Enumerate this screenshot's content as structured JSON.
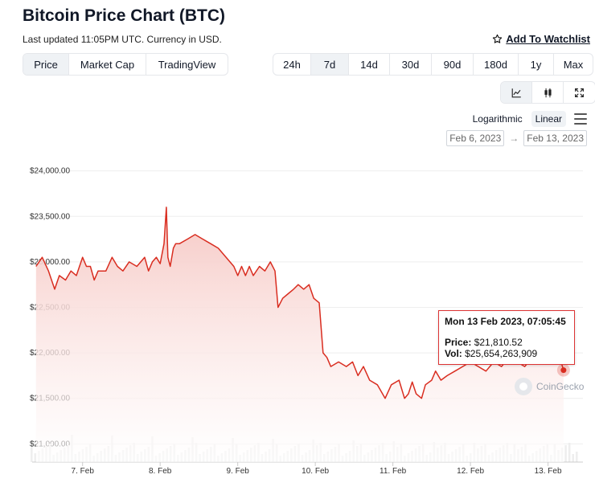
{
  "header": {
    "title": "Bitcoin Price Chart (BTC)",
    "subtitle": "Last updated 11:05PM UTC. Currency in USD.",
    "watchlist_label": "Add To Watchlist"
  },
  "view_tabs": [
    "Price",
    "Market Cap",
    "TradingView"
  ],
  "view_active": "Price",
  "range_tabs": [
    "24h",
    "7d",
    "14d",
    "30d",
    "90d",
    "180d",
    "1y",
    "Max"
  ],
  "range_active": "7d",
  "chart_type_icons": [
    "line-chart-icon",
    "candlestick-icon",
    "expand-icon"
  ],
  "scale": {
    "options": [
      "Logarithmic",
      "Linear"
    ],
    "active": "Linear"
  },
  "date_range": {
    "from": "Feb 6, 2023",
    "to": "Feb 13, 2023"
  },
  "tooltip": {
    "title": "Mon 13 Feb 2023, 07:05:45",
    "price_label": "Price:",
    "price_value": "$21,810.52",
    "vol_label": "Vol:",
    "vol_value": "$25,654,263,909"
  },
  "watermark": "CoinGecko",
  "colors": {
    "line": "#d92d20",
    "area_top": "#f6c8c4",
    "area_bottom": "#ffffff",
    "grid": "#eeeeee",
    "volume": "#eeeeee"
  },
  "chart_data": {
    "type": "area",
    "title": "Bitcoin Price Chart (BTC)",
    "ylim": [
      20800,
      24200
    ],
    "yticks": [
      21000,
      21500,
      22000,
      22500,
      23000,
      23500,
      24000
    ],
    "ytick_labels": [
      "$21,000.00",
      "$21,500.00",
      "$22,000.00",
      "$22,500.00",
      "$23,000.00",
      "$23,500.00",
      "$24,000.00"
    ],
    "xlim": [
      6.35,
      13.45
    ],
    "xticks": [
      7,
      8,
      9,
      10,
      11,
      12,
      13
    ],
    "xtick_labels": [
      "7. Feb",
      "8. Feb",
      "9. Feb",
      "10. Feb",
      "11. Feb",
      "12. Feb",
      "13. Feb"
    ],
    "grid": true,
    "series": [
      {
        "x": [
          6.4,
          6.48,
          6.56,
          6.64,
          6.7,
          6.78,
          6.85,
          6.92,
          7.0,
          7.05,
          7.1,
          7.15,
          7.2,
          7.3,
          7.38,
          7.45,
          7.52,
          7.6,
          7.7,
          7.8,
          7.85,
          7.9,
          7.95,
          8.0,
          8.05,
          8.08,
          8.1,
          8.13,
          8.17,
          8.2,
          8.25,
          8.35,
          8.45,
          8.55,
          8.65,
          8.75,
          8.85,
          8.95,
          9.0,
          9.05,
          9.1,
          9.15,
          9.2,
          9.28,
          9.35,
          9.42,
          9.48,
          9.52,
          9.58,
          9.65,
          9.72,
          9.78,
          9.85,
          9.92,
          9.98,
          10.05,
          10.1,
          10.15,
          10.2,
          10.3,
          10.4,
          10.48,
          10.55,
          10.62,
          10.7,
          10.8,
          10.9,
          10.98,
          11.08,
          11.15,
          11.2,
          11.25,
          11.3,
          11.37,
          11.42,
          11.5,
          11.55,
          11.62,
          11.7,
          11.8,
          11.9,
          12.0,
          12.1,
          12.2,
          12.3,
          12.4,
          12.5,
          12.6,
          12.7,
          12.8,
          12.9,
          13.0,
          13.05,
          13.1,
          13.15,
          13.2
        ],
        "y": [
          22950,
          23050,
          22900,
          22700,
          22850,
          22800,
          22900,
          22850,
          23050,
          22950,
          22950,
          22800,
          22900,
          22900,
          23050,
          22950,
          22900,
          23000,
          22950,
          23050,
          22900,
          23000,
          23050,
          22980,
          23200,
          23600,
          23050,
          22950,
          23150,
          23200,
          23200,
          23250,
          23300,
          23250,
          23200,
          23150,
          23050,
          22950,
          22850,
          22950,
          22850,
          22950,
          22850,
          22950,
          22900,
          23000,
          22900,
          22500,
          22600,
          22650,
          22700,
          22750,
          22700,
          22750,
          22600,
          22550,
          22000,
          21950,
          21850,
          21900,
          21850,
          21900,
          21750,
          21850,
          21700,
          21650,
          21500,
          21650,
          21700,
          21500,
          21550,
          21680,
          21550,
          21500,
          21650,
          21700,
          21800,
          21700,
          21750,
          21800,
          21850,
          21900,
          21850,
          21800,
          21900,
          21850,
          21950,
          21900,
          21850,
          21950,
          21900,
          22050,
          21950,
          22050,
          21950,
          21810
        ]
      }
    ]
  }
}
